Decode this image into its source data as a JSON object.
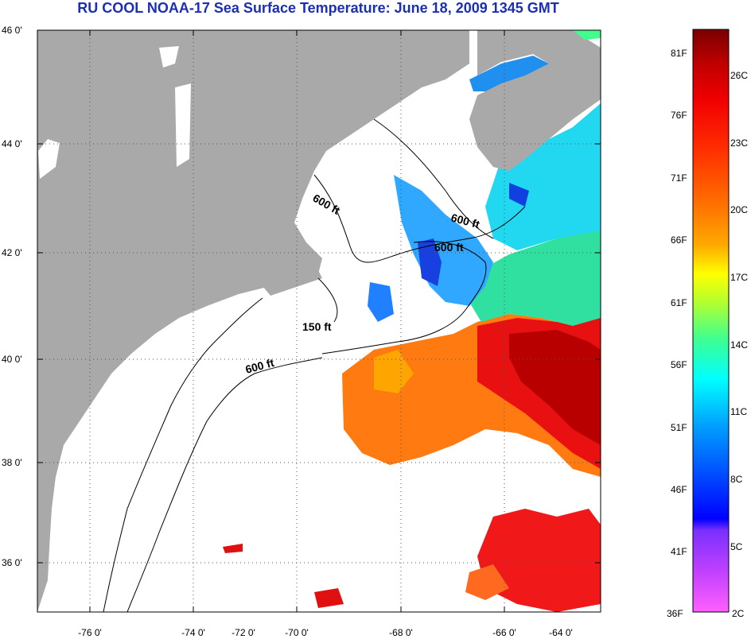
{
  "title": "RU COOL  NOAA-17  Sea Surface Temperature:  June 18, 2009 1345 GMT",
  "map": {
    "lat_labels": [
      "46 0'",
      "44 0'",
      "42 0'",
      "40 0'",
      "38 0'",
      "36 0'"
    ],
    "lon_labels": [
      "-76 0'",
      "-74 0'",
      "-72 0'",
      "-70 0'",
      "-68 0'",
      "-66 0'",
      "-64 0'"
    ],
    "contour_labels": [
      {
        "text": "600 ft",
        "id": "contour-label-gom-west"
      },
      {
        "text": "600 ft",
        "id": "contour-label-gom-east"
      },
      {
        "text": "600 ft",
        "id": "contour-label-georges"
      },
      {
        "text": "150 ft",
        "id": "contour-label-150"
      },
      {
        "text": "600 ft",
        "id": "contour-label-shelf"
      }
    ],
    "colors": {
      "land": "#a9a9a9",
      "no_data": "#ffffff",
      "border": "#000000"
    }
  },
  "colorbar": {
    "fahrenheit_labels": [
      "81F",
      "76F",
      "71F",
      "66F",
      "61F",
      "56F",
      "51F",
      "46F",
      "41F",
      "36F"
    ],
    "celsius_labels": [
      "26C",
      "23C",
      "20C",
      "17C",
      "14C",
      "11C",
      "8C",
      "5C",
      "2C"
    ],
    "gradient_stops": [
      "#7a0000",
      "#e00000",
      "#ff3000",
      "#ff7a00",
      "#ffb000",
      "#ffff00",
      "#a8ff40",
      "#40ff90",
      "#00ffff",
      "#00a0ff",
      "#0050ff",
      "#0000ff",
      "#a040ff",
      "#ff40ff"
    ]
  }
}
